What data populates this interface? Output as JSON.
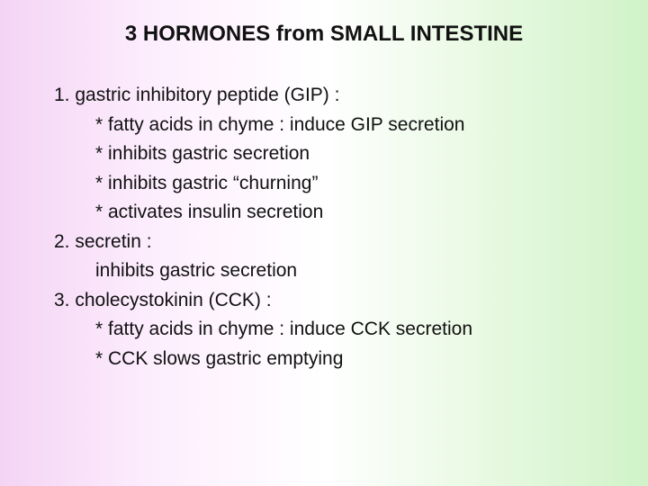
{
  "background_gradient": [
    "#f4d4f4",
    "#fdeffe",
    "#ffffff",
    "#e8f9e2",
    "#d0f3c8"
  ],
  "title": {
    "text": "3 HORMONES from SMALL INTESTINE",
    "font_family": "Comic Sans MS",
    "font_weight": "bold",
    "font_size_pt": 24,
    "color": "#111111",
    "align": "center"
  },
  "body": {
    "font_family": "Arial",
    "font_size_pt": 21,
    "color": "#111111",
    "line_height": 1.55
  },
  "lines": {
    "l0": "1. gastric inhibitory peptide (GIP) :",
    "l1": "* fatty acids in chyme : induce GIP secretion",
    "l2": "* inhibits gastric secretion",
    "l3": "* inhibits gastric “churning”",
    "l4": "* activates insulin secretion",
    "l5": "2. secretin :",
    "l6": "inhibits gastric secretion",
    "l7": "3. cholecystokinin (CCK) :",
    "l8": "* fatty acids in chyme : induce CCK secretion",
    "l9": "* CCK slows gastric emptying"
  }
}
